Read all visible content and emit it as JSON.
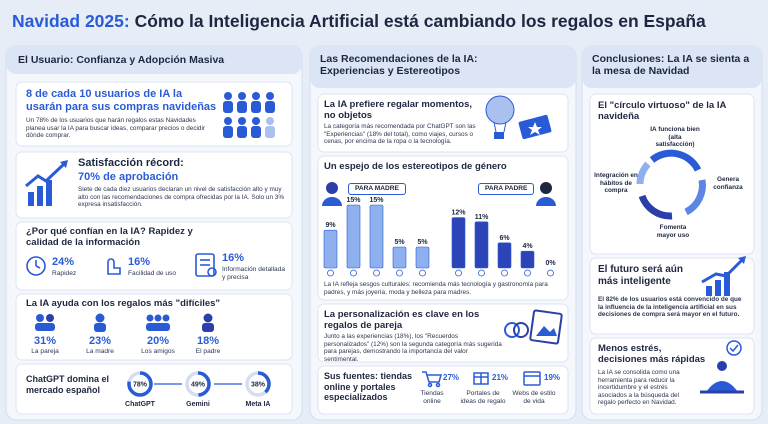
{
  "header": {
    "title_lead": "Navidad 2025:",
    "title_rest": "Cómo la Inteligencia Artificial está cambiando los regalos en España"
  },
  "left": {
    "header": "El Usuario: Confianza y Adopción Masiva",
    "adoption": {
      "headline": "8 de cada 10 usuarios de IA la usarán para sus compras navideñas",
      "body": "Un 78% de los usuarios que harán regalos estas Navidades planea usar la IA para buscar ideas, comparar precios o decidir dónde comprar."
    },
    "satisfaction": {
      "headline": "Satisfacción récord:",
      "subheadline": "70% de aprobación",
      "body": "Siete de cada diez usuarios declaran un nivel de satisfacción alto y muy alto con las recomendaciones de compra ofrecidas por la IA. Solo un 3% expresa insatisfacción."
    },
    "trust": {
      "heading": "¿Por qué confían en la IA? Rapidez y calidad de la información",
      "items": [
        {
          "value": "24%",
          "label": "Rapidez"
        },
        {
          "value": "16%",
          "label": "Facilidad de uso"
        },
        {
          "value": "16%",
          "label": "Información detallada y precisa"
        }
      ]
    },
    "difficult": {
      "heading": "La IA ayuda con los regalos más \"difíciles\"",
      "items": [
        {
          "value": "31%",
          "label": "La pareja"
        },
        {
          "value": "23%",
          "label": "La madre"
        },
        {
          "value": "20%",
          "label": "Los amigos"
        },
        {
          "value": "18%",
          "label": "El padre"
        }
      ]
    },
    "market": {
      "heading": "ChatGPT domina el mercado español",
      "items": [
        {
          "value": 78,
          "value_label": "78%",
          "label": "ChatGPT"
        },
        {
          "value": 49,
          "value_label": "49%",
          "label": "Gemini"
        },
        {
          "value": 38,
          "value_label": "38%",
          "label": "Meta IA"
        }
      ]
    }
  },
  "middle": {
    "header": "Las Recomendaciones de la IA: Experiencias y Estereotipos",
    "experiences": {
      "heading": "La IA prefiere regalar momentos, no objetos",
      "body": "La categoría más recomendada por ChatGPT son las \"Experiencias\" (18% del total), como viajes, cursos o cenas, por encima de la ropa o la tecnología."
    },
    "gender": {
      "heading": "Un espejo de los estereotipos de género",
      "groups": [
        {
          "name": "PARA MADRE",
          "color": "#8fb0ee",
          "bars": [
            {
              "value": 9,
              "label": "9%"
            },
            {
              "value": 15,
              "label": "15%"
            },
            {
              "value": 15,
              "label": "15%"
            },
            {
              "value": 5,
              "label": "5%"
            },
            {
              "value": 5,
              "label": "5%"
            }
          ]
        },
        {
          "name": "PARA PADRE",
          "color": "#2b45b8",
          "bars": [
            {
              "value": 12,
              "label": "12%"
            },
            {
              "value": 11,
              "label": "11%"
            },
            {
              "value": 6,
              "label": "6%"
            },
            {
              "value": 4,
              "label": "4%"
            },
            {
              "value": 0,
              "label": "0%"
            }
          ]
        }
      ],
      "caption": "La IA refleja sesgos culturales: recomienda más tecnología y gastronomía para padres, y más joyería, moda y belleza para madres."
    },
    "couples": {
      "heading": "La personalización es clave en los regalos de pareja",
      "body": "Junto a las experiencias (18%), los \"Recuerdos personalizados\" (12%) son la segunda categoría más sugerida para parejas, demostrando la importancia del valor sentimental."
    },
    "sources": {
      "heading": "Sus fuentes: tiendas online y portales especializados",
      "items": [
        {
          "value": "27%",
          "label": "Tiendas online"
        },
        {
          "value": "21%",
          "label": "Portales de ideas de regalo"
        },
        {
          "value": "19%",
          "label": "Webs de estilo de vida"
        }
      ]
    }
  },
  "right": {
    "header": "Conclusiones: La IA se sienta a la mesa de Navidad",
    "cycle": {
      "heading": "El \"círculo virtuoso\" de la IA navideña",
      "steps": [
        "IA funciona bien (alta satisfacción)",
        "Genera confianza",
        "Fomenta mayor uso",
        "Integración en hábitos de compra"
      ]
    },
    "future": {
      "heading": "El futuro será aún más inteligente",
      "body": "El 82% de los usuarios está convencido de que la influencia de la inteligencia artificial en sus decisiones de compra será mayor en el futuro."
    },
    "stress": {
      "heading": "Menos estrés, decisiones más rápidas",
      "body": "La IA se consolida como una herramienta para reducir la incertidumbre y el estrés asociados a la búsqueda del regalo perfecto en Navidad."
    }
  }
}
